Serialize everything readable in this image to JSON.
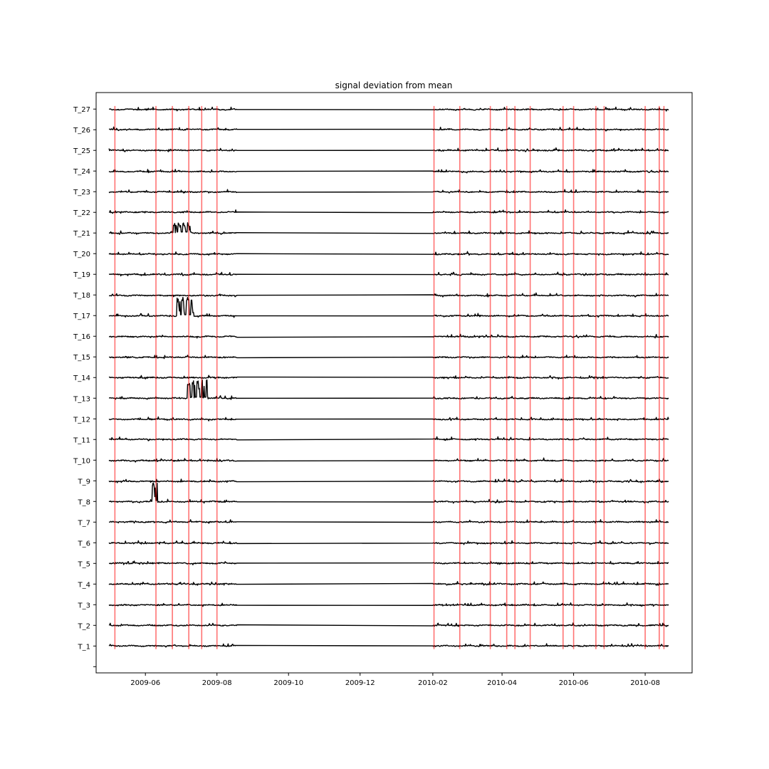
{
  "chart_data": {
    "type": "line",
    "title": "signal deviation from mean",
    "xlabel": "",
    "ylabel": "",
    "grid": false,
    "x_axis": {
      "type": "date",
      "range": [
        "2009-04-20",
        "2010-09-10"
      ],
      "ticks": [
        {
          "date": "2009-06-01",
          "label": "2009-06"
        },
        {
          "date": "2009-08-01",
          "label": "2009-08"
        },
        {
          "date": "2009-10-01",
          "label": "2009-10"
        },
        {
          "date": "2009-12-01",
          "label": "2009-12"
        },
        {
          "date": "2010-02-01",
          "label": "2010-02"
        },
        {
          "date": "2010-04-01",
          "label": "2010-04"
        },
        {
          "date": "2010-06-01",
          "label": "2010-06"
        },
        {
          "date": "2010-08-01",
          "label": "2010-08"
        }
      ]
    },
    "y_axis": {
      "type": "category",
      "labels": [
        "T_1",
        "T_2",
        "T_3",
        "T_4",
        "T_5",
        "T_6",
        "T_7",
        "T_8",
        "T_9",
        "T_10",
        "T_11",
        "T_12",
        "T_13",
        "T_14",
        "T_15",
        "T_16",
        "T_17",
        "T_18",
        "T_19",
        "T_20",
        "T_21",
        "T_22",
        "T_23",
        "T_24",
        "T_25",
        "T_26",
        "T_27"
      ],
      "range": [
        -0.3,
        27.8
      ]
    },
    "data_segments": [
      {
        "start": "2009-05-01",
        "end": "2009-08-18"
      },
      {
        "start": "2010-02-01",
        "end": "2010-08-21"
      }
    ],
    "event_lines": {
      "color": "#ff0000",
      "dates": [
        "2009-05-06",
        "2009-06-10",
        "2009-06-24",
        "2009-07-08",
        "2009-07-19",
        "2009-08-01",
        "2010-02-02",
        "2010-02-24",
        "2010-03-22",
        "2010-04-05",
        "2010-04-12",
        "2010-04-25",
        "2010-05-23",
        "2010-06-01",
        "2010-06-20",
        "2010-06-27",
        "2010-08-01",
        "2010-08-13",
        "2010-08-17"
      ]
    },
    "anomalies": [
      {
        "series": "T_8",
        "start": "2009-06-07",
        "end": "2009-06-11",
        "amplitude": 0.9
      },
      {
        "series": "T_13",
        "start": "2009-07-07",
        "end": "2009-07-24",
        "amplitude": 0.9
      },
      {
        "series": "T_17",
        "start": "2009-06-28",
        "end": "2009-07-12",
        "amplitude": 0.9
      },
      {
        "series": "T_21",
        "start": "2009-06-25",
        "end": "2009-07-10",
        "amplitude": 0.5
      }
    ],
    "series_color": "#000000"
  }
}
